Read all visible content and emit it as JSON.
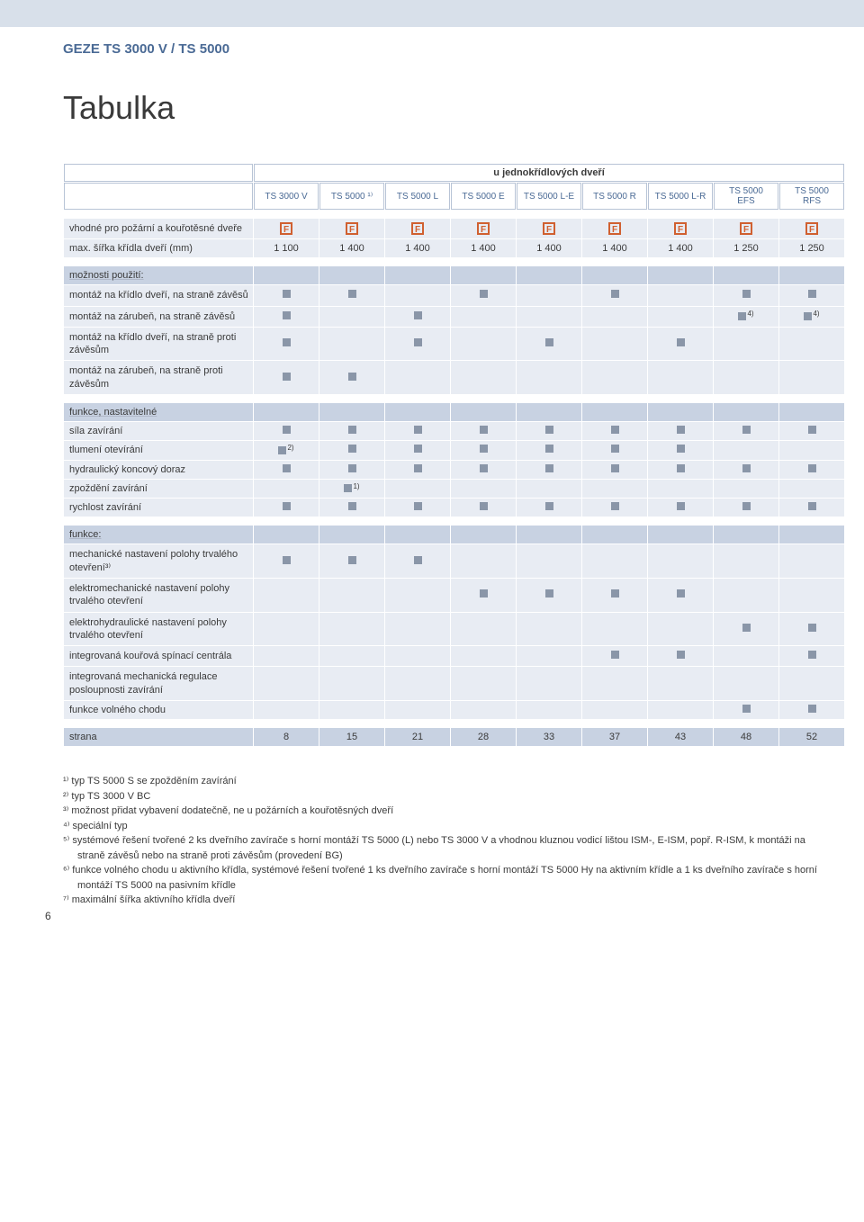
{
  "header": {
    "breadcrumb": "GEZE TS 3000 V / TS 5000",
    "title": "Tabulka",
    "u_title": "u jednokřídlových dveří"
  },
  "columns": [
    "TS 3000 V",
    "TS 5000 ¹⁾",
    "TS 5000 L",
    "TS 5000 E",
    "TS 5000 L-E",
    "TS 5000 R",
    "TS 5000 L-R",
    "TS 5000 EFS",
    "TS 5000 RFS"
  ],
  "rows": {
    "fire": {
      "label": "vhodné pro požární a kouřotěsné dveře",
      "vals": [
        "F",
        "F",
        "F",
        "F",
        "F",
        "F",
        "F",
        "F",
        "F"
      ]
    },
    "width": {
      "label": "max. šířka křídla dveří (mm)",
      "vals": [
        "1 100",
        "1 400",
        "1 400",
        "1 400",
        "1 400",
        "1 400",
        "1 400",
        "1 250",
        "1 250"
      ]
    },
    "sec_mount": "možnosti použití:",
    "m1": {
      "label": "montáž na křídlo dveří, na straně závěsů",
      "vals": [
        "sq",
        "sq",
        "",
        "sq",
        "",
        "sq",
        "",
        "sq",
        "sq"
      ]
    },
    "m2": {
      "label": "montáž na zárubeň, na straně závěsů",
      "vals": [
        "sq",
        "",
        "sq",
        "",
        "",
        "",
        "",
        "sq4",
        "sq4"
      ]
    },
    "m3": {
      "label": "montáž na křídlo dveří, na straně proti závěsům",
      "vals": [
        "sq",
        "",
        "sq",
        "",
        "sq",
        "",
        "sq",
        "",
        ""
      ]
    },
    "m4": {
      "label": "montáž na zárubeň, na straně proti závěsům",
      "vals": [
        "sq",
        "sq",
        "",
        "",
        "",
        "",
        "",
        "",
        ""
      ]
    },
    "sec_func": "funkce, nastavitelné",
    "f1": {
      "label": "síla zavírání",
      "vals": [
        "sq",
        "sq",
        "sq",
        "sq",
        "sq",
        "sq",
        "sq",
        "sq",
        "sq"
      ]
    },
    "f2": {
      "label": "tlumení otevírání",
      "vals": [
        "sq2",
        "sq",
        "sq",
        "sq",
        "sq",
        "sq",
        "sq",
        "",
        ""
      ]
    },
    "f3": {
      "label": "hydraulický koncový doraz",
      "vals": [
        "sq",
        "sq",
        "sq",
        "sq",
        "sq",
        "sq",
        "sq",
        "sq",
        "sq"
      ]
    },
    "f4": {
      "label": "zpoždění zavírání",
      "vals": [
        "",
        "sq1",
        "",
        "",
        "",
        "",
        "",
        "",
        ""
      ]
    },
    "f5": {
      "label": "rychlost zavírání",
      "vals": [
        "sq",
        "sq",
        "sq",
        "sq",
        "sq",
        "sq",
        "sq",
        "sq",
        "sq"
      ]
    },
    "sec_funkce": "funkce:",
    "g1": {
      "label": "mechanické nastavení polohy trvalého otevření³⁾",
      "vals": [
        "sq",
        "sq",
        "sq",
        "",
        "",
        "",
        "",
        "",
        ""
      ]
    },
    "g2": {
      "label": "elektromechanické nastavení polohy trvalého otevření",
      "vals": [
        "",
        "",
        "",
        "sq",
        "sq",
        "sq",
        "sq",
        "",
        ""
      ]
    },
    "g3": {
      "label": "elektrohydraulické nastavení polohy trvalého otevření",
      "vals": [
        "",
        "",
        "",
        "",
        "",
        "",
        "",
        "sq",
        "sq"
      ]
    },
    "g4": {
      "label": "integrovaná kouřová spínací centrála",
      "vals": [
        "",
        "",
        "",
        "",
        "",
        "sq",
        "sq",
        "",
        "sq"
      ]
    },
    "g5": {
      "label": "integrovaná mechanická regulace posloupnosti zavírání",
      "vals": [
        "",
        "",
        "",
        "",
        "",
        "",
        "",
        "",
        ""
      ]
    },
    "g6": {
      "label": "funkce volného chodu",
      "vals": [
        "",
        "",
        "",
        "",
        "",
        "",
        "",
        "sq",
        "sq"
      ]
    },
    "strana": {
      "label": "strana",
      "vals": [
        "8",
        "15",
        "21",
        "28",
        "33",
        "37",
        "43",
        "48",
        "52"
      ]
    }
  },
  "footnotes": [
    "¹⁾  typ TS 5000 S se zpožděním zavírání",
    "²⁾  typ TS 3000 V BC",
    "³⁾  možnost přidat vybavení dodatečně, ne u požárních a kouřotěsných dveří",
    "⁴⁾  speciální typ",
    "⁵⁾  systémové řešení tvořené 2 ks dveřního zavírače s horní montáží TS 5000 (L) nebo TS 3000 V a vhodnou kluznou vodicí lištou ISM-, E-ISM, popř. R-ISM, k montáži na straně závěsů nebo na straně proti závěsům (provedení BG)",
    "⁶⁾  funkce volného chodu u aktivního křídla, systémové řešení tvořené 1 ks dveřního zavírače s horní montáží TS 5000 Hy na aktivním křídle a 1 ks dveřního zavírače s horní montáží TS 5000 na pasivním křídle",
    "⁷⁾  maximální šířka aktivního křídla dveří"
  ],
  "page_number": "6",
  "colors": {
    "header_band": "#d8e0ea",
    "breadcrumb": "#4a6a95",
    "cell_bg": "#e8ecf3",
    "section_bg": "#c8d2e2",
    "square": "#8a96a8",
    "fire_icon": "#d06030",
    "border": "#b8c4d6"
  }
}
